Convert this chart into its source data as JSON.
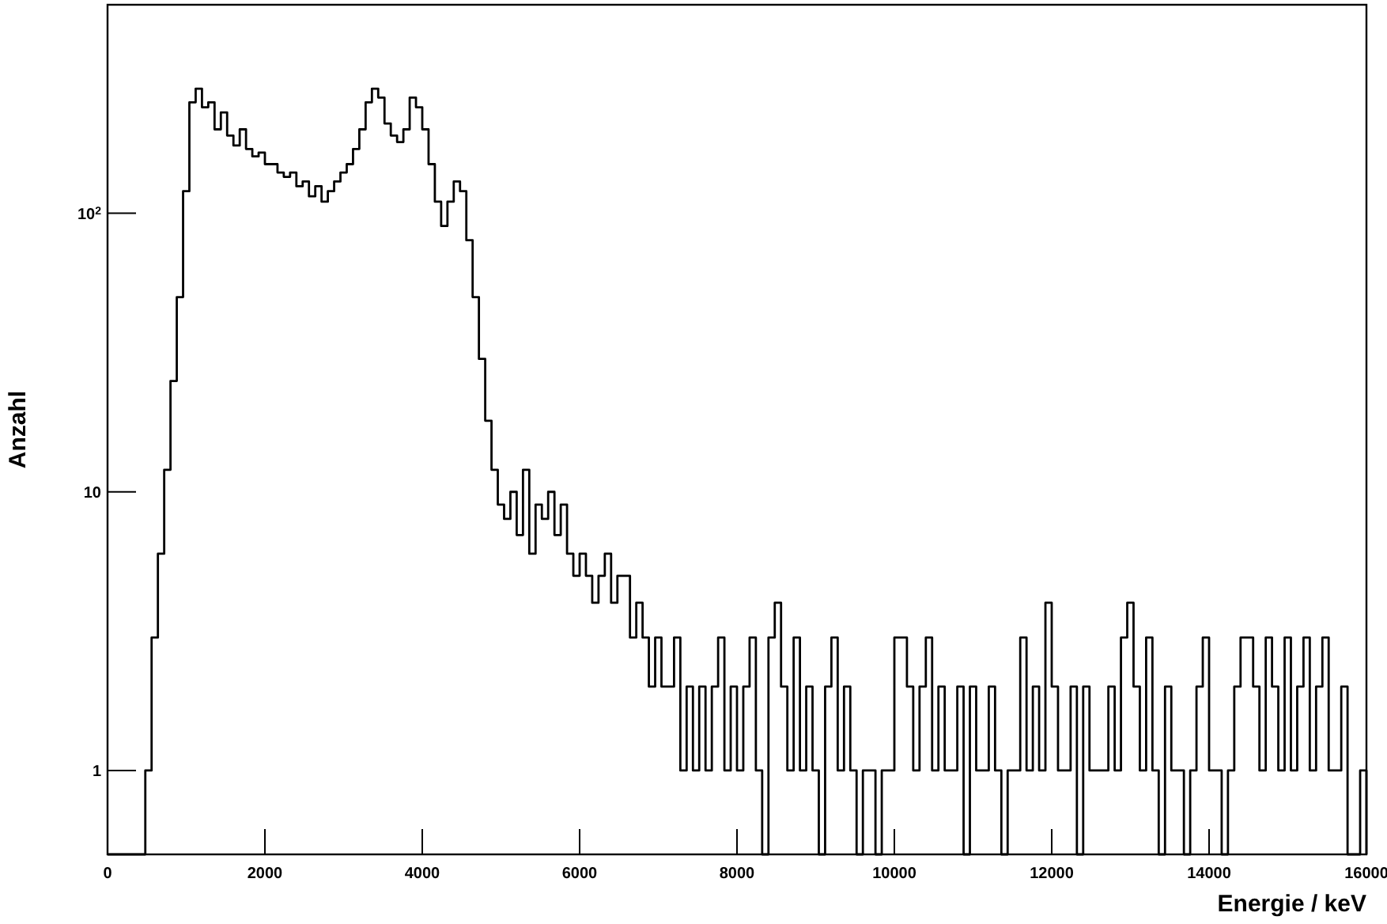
{
  "chart_data": {
    "type": "histogram",
    "xlabel": "Energie / keV",
    "ylabel": "Anzahl",
    "log": "y",
    "color": "#000000",
    "bins": [
      0,
      80,
      160,
      240,
      320,
      400,
      480,
      560,
      640,
      720,
      800,
      880,
      960,
      1040,
      1120,
      1200,
      1280,
      1360,
      1440,
      1520,
      1600,
      1680,
      1760,
      1840,
      1920,
      2000,
      2080,
      2160,
      2240,
      2320,
      2400,
      2480,
      2560,
      2640,
      2720,
      2800,
      2880,
      2960,
      3040,
      3120,
      3200,
      3280,
      3360,
      3440,
      3520,
      3600,
      3680,
      3760,
      3840,
      3920,
      4000,
      4080,
      4160,
      4240,
      4320,
      4400,
      4480,
      4560,
      4640,
      4720,
      4800,
      4880,
      4960,
      5040,
      5120,
      5200,
      5280,
      5360,
      5440,
      5520,
      5600,
      5680,
      5760,
      5840,
      5920,
      6000,
      6080,
      6160,
      6240,
      6320,
      6400,
      6480,
      6560,
      6640,
      6720,
      6800,
      6880,
      6960,
      7040,
      7120,
      7200,
      7280,
      7360,
      7440,
      7520,
      7600,
      7680,
      7760,
      7840,
      7920,
      8000,
      8080,
      8160,
      8240,
      8320,
      8400,
      8480,
      8560,
      8640,
      8720,
      8800,
      8880,
      8960,
      9040,
      9120,
      9200,
      9280,
      9360,
      9440,
      9520,
      9600,
      9680,
      9760,
      9840,
      9920,
      10000,
      10080,
      10160,
      10240,
      10320,
      10400,
      10480,
      10560,
      10640,
      10720,
      10800,
      10880,
      10960,
      11040,
      11120,
      11200,
      11280,
      11360,
      11440,
      11520,
      11600,
      11680,
      11760,
      11840,
      11920,
      12000,
      12080,
      12160,
      12240,
      12320,
      12400,
      12480,
      12560,
      12640,
      12720,
      12800,
      12880,
      12960,
      13040,
      13120,
      13200,
      13280,
      13360,
      13440,
      13520,
      13600,
      13680,
      13760,
      13840,
      13920,
      14000,
      14080,
      14160,
      14240,
      14320,
      14400,
      14480,
      14560,
      14640,
      14720,
      14800,
      14880,
      14960,
      15040,
      15120,
      15200,
      15280,
      15360,
      15440,
      15520,
      15600,
      15680,
      15760,
      15840,
      15920,
      16000
    ],
    "values": [
      null,
      null,
      null,
      null,
      null,
      null,
      1,
      3,
      6,
      12,
      25,
      50,
      120,
      250,
      280,
      240,
      250,
      200,
      230,
      190,
      175,
      200,
      170,
      160,
      165,
      150,
      150,
      140,
      135,
      140,
      125,
      130,
      115,
      125,
      110,
      120,
      130,
      140,
      150,
      170,
      200,
      250,
      280,
      260,
      210,
      190,
      180,
      200,
      260,
      240,
      200,
      150,
      110,
      90,
      110,
      130,
      120,
      80,
      50,
      30,
      18,
      12,
      9,
      8,
      10,
      7,
      12,
      6,
      9,
      8,
      10,
      7,
      9,
      6,
      5,
      6,
      5,
      4,
      5,
      6,
      4,
      5,
      5,
      3,
      4,
      3,
      2,
      3,
      2,
      2,
      3,
      1,
      2,
      1,
      2,
      1,
      2,
      3,
      1,
      2,
      1,
      2,
      3,
      1,
      null,
      3,
      4,
      2,
      1,
      3,
      1,
      2,
      1,
      null,
      2,
      3,
      1,
      2,
      1,
      null,
      1,
      1,
      null,
      1,
      1,
      3,
      3,
      2,
      1,
      2,
      3,
      1,
      2,
      1,
      1,
      2,
      null,
      2,
      1,
      1,
      2,
      1,
      null,
      1,
      1,
      3,
      1,
      2,
      1,
      4,
      2,
      1,
      1,
      2,
      null,
      2,
      1,
      1,
      1,
      2,
      1,
      3,
      4,
      2,
      1,
      3,
      1,
      null,
      2,
      1,
      1,
      null,
      1,
      2,
      3,
      1,
      1,
      null,
      1,
      2,
      3,
      3,
      2,
      1,
      3,
      2,
      1,
      3,
      1,
      2,
      3,
      1,
      2,
      3,
      1,
      1,
      2,
      null,
      null,
      1
    ],
    "xlim": [
      0,
      16000
    ],
    "xticks": [
      0,
      2000,
      4000,
      6000,
      8000,
      10000,
      12000,
      14000,
      16000
    ],
    "ylim": [
      0.5,
      560
    ],
    "yticks": [
      1,
      10,
      {
        "value": 100,
        "label": "10$^{2}$"
      }
    ],
    "grid": false
  }
}
